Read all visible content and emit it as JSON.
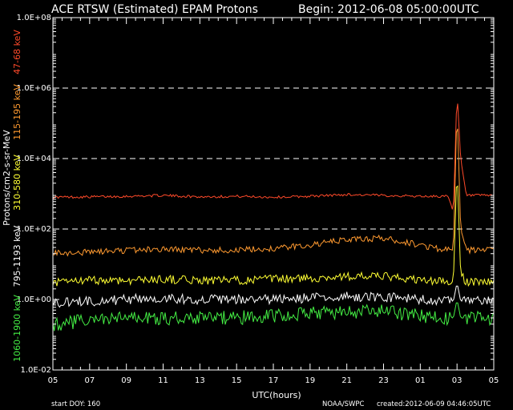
{
  "header": {
    "title": "ACE RTSW (Estimated) EPAM Protons",
    "begin": "Begin: 2012-06-08 05:00:00UTC"
  },
  "footer": {
    "start_doy": "start DOY:  160",
    "agency": "NOAA/SWPC",
    "created": "created:2012-06-09 04:46:05UTC"
  },
  "chart_data": {
    "type": "line",
    "title": "ACE RTSW (Estimated) EPAM Protons",
    "xlabel": "UTC(hours)",
    "ylabel": "Protons/cm2-s-sr-MeV",
    "y_scale": "log",
    "ylim": [
      0.01,
      100000000
    ],
    "xlim": [
      5,
      29
    ],
    "x_ticks": [
      "05",
      "07",
      "09",
      "11",
      "13",
      "15",
      "17",
      "19",
      "21",
      "23",
      "01",
      "03",
      "05"
    ],
    "y_ticks": [
      "1.0E-02",
      "1.0E+00",
      "1.0E+02",
      "1.0E+04",
      "1.0E+06",
      "1.0E+08"
    ],
    "grid": "dashed at 1.0E+02, 1.0E+04, 1.0E+06",
    "series": [
      {
        "name": "47-68 keV",
        "color": "#ff4a2a",
        "x": [
          5,
          7,
          9,
          11,
          13,
          15,
          17,
          19,
          21,
          23,
          25,
          26.5,
          26.8,
          27,
          27.2,
          27.5,
          29
        ],
        "y": [
          800,
          820,
          850,
          900,
          820,
          850,
          800,
          850,
          950,
          900,
          850,
          850,
          300,
          800000,
          10000,
          900,
          900
        ]
      },
      {
        "name": "115-195 keV",
        "color": "#ff9a30",
        "x": [
          5,
          7,
          9,
          11,
          13,
          15,
          17,
          19,
          21,
          23,
          25,
          26.5,
          26.8,
          27,
          27.2,
          27.5,
          29
        ],
        "y": [
          20,
          22,
          25,
          27,
          25,
          25,
          28,
          35,
          50,
          55,
          35,
          25,
          25,
          300000,
          100,
          25,
          25
        ]
      },
      {
        "name": "310-580 keV",
        "color": "#ffff33",
        "x": [
          5,
          7,
          9,
          11,
          13,
          15,
          17,
          19,
          21,
          23,
          25,
          26.5,
          26.8,
          27,
          27.2,
          27.5,
          29
        ],
        "y": [
          3,
          3.5,
          3.5,
          3.8,
          3.5,
          3.5,
          3.8,
          4,
          4.5,
          4.5,
          3.5,
          3.2,
          3.2,
          6000,
          5,
          3.2,
          3.2
        ]
      },
      {
        "name": "795-1193 keV",
        "color": "#ffffff",
        "x": [
          5,
          7,
          9,
          11,
          13,
          15,
          17,
          19,
          21,
          23,
          25,
          26.5,
          26.8,
          27,
          27.2,
          27.5,
          29
        ],
        "y": [
          0.8,
          0.9,
          1,
          1.1,
          1,
          1,
          1,
          1.1,
          1.2,
          1.2,
          1,
          0.9,
          0.9,
          3,
          0.9,
          0.9,
          0.9
        ]
      },
      {
        "name": "1060-1900 keV",
        "color": "#44ee44",
        "x": [
          5,
          7,
          9,
          11,
          13,
          15,
          17,
          19,
          21,
          23,
          25,
          26.5,
          26.8,
          27,
          27.2,
          27.5,
          29
        ],
        "y": [
          0.2,
          0.25,
          0.3,
          0.3,
          0.3,
          0.3,
          0.35,
          0.4,
          0.45,
          0.45,
          0.35,
          0.3,
          0.3,
          1,
          0.3,
          0.3,
          0.3
        ]
      }
    ]
  }
}
